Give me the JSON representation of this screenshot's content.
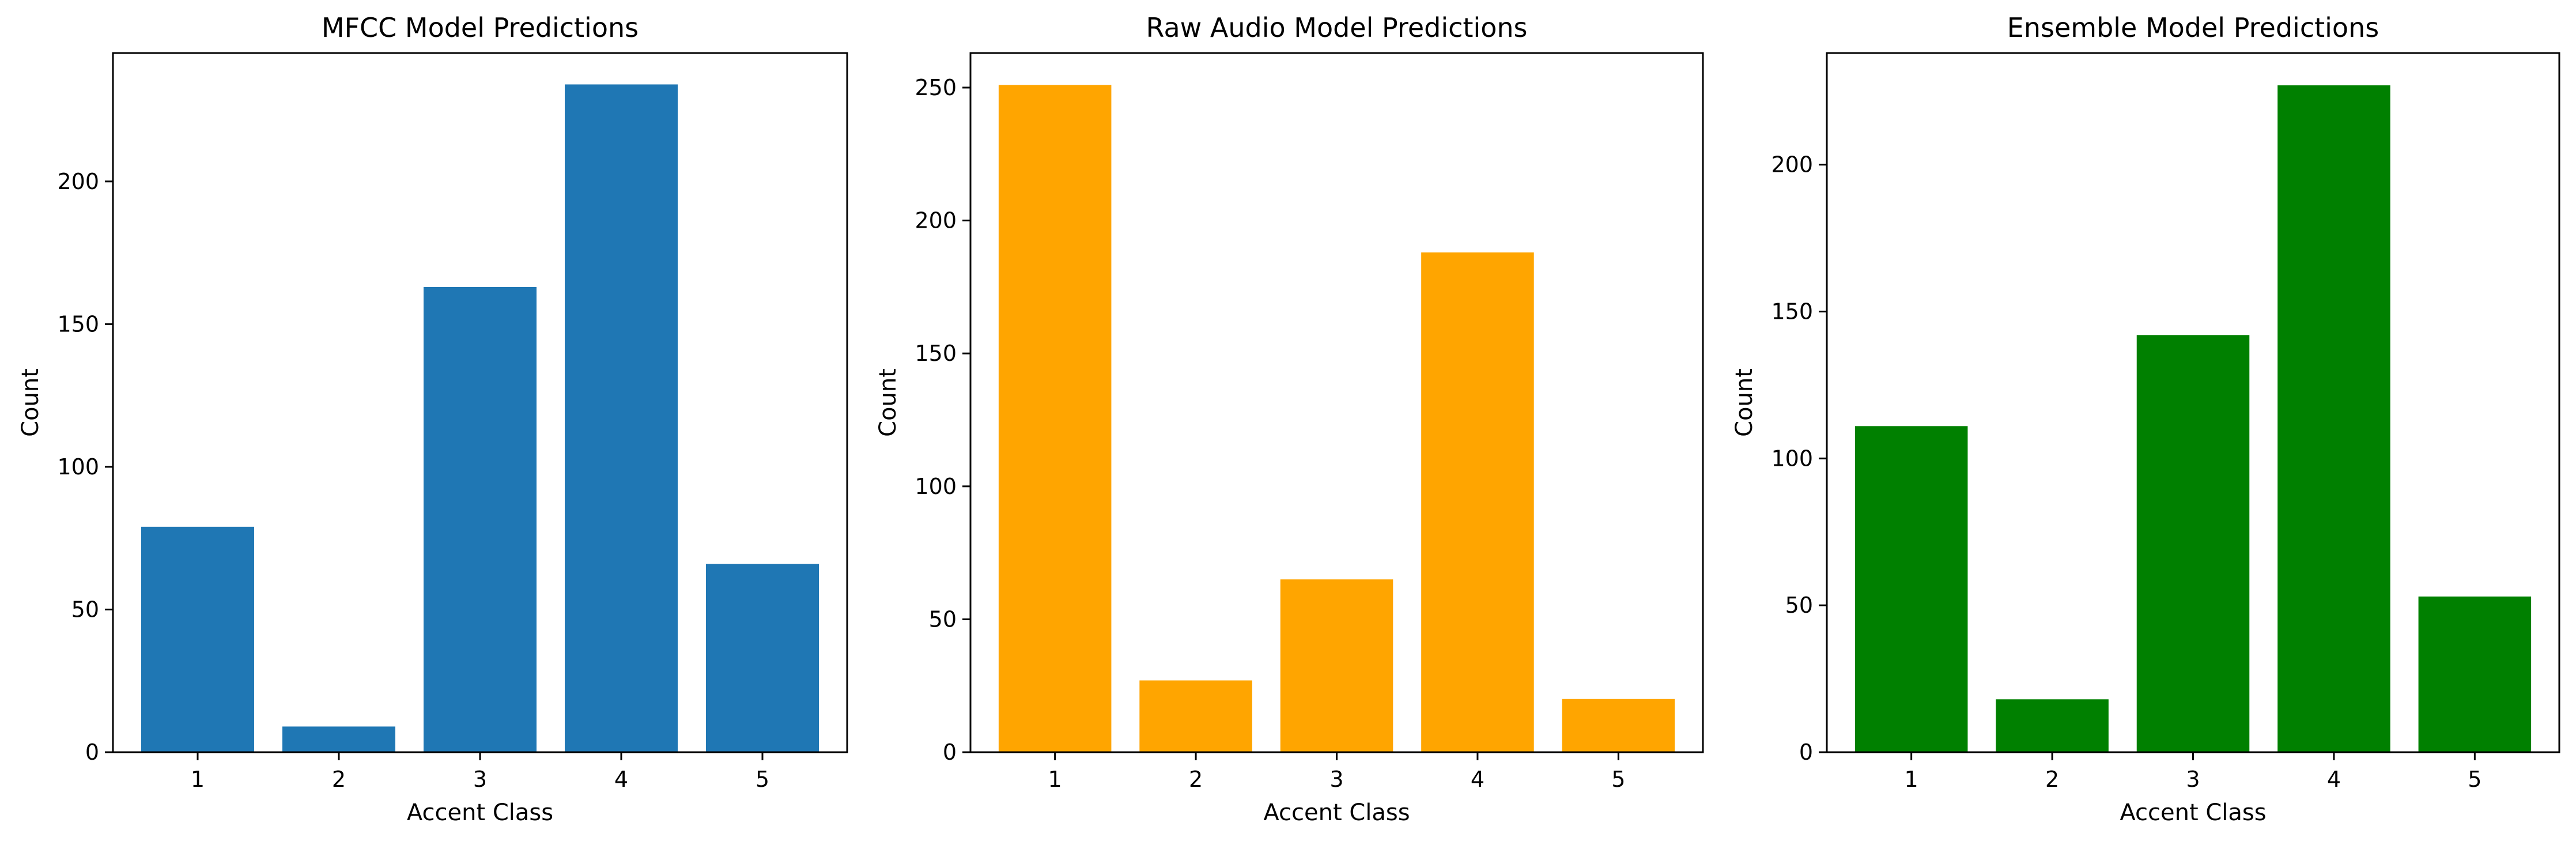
{
  "chart_data": [
    {
      "type": "bar",
      "title": "MFCC Model Predictions",
      "xlabel": "Accent Class",
      "ylabel": "Count",
      "categories": [
        "1",
        "2",
        "3",
        "4",
        "5"
      ],
      "values": [
        79,
        9,
        163,
        234,
        66
      ],
      "ylim": [
        0,
        245
      ],
      "yticks": [
        0,
        50,
        100,
        150,
        200
      ],
      "color": "#1f77b4",
      "grid": false,
      "legend": "none"
    },
    {
      "type": "bar",
      "title": "Raw Audio Model Predictions",
      "xlabel": "Accent Class",
      "ylabel": "Count",
      "categories": [
        "1",
        "2",
        "3",
        "4",
        "5"
      ],
      "values": [
        251,
        27,
        65,
        188,
        20
      ],
      "ylim": [
        0,
        263
      ],
      "yticks": [
        0,
        50,
        100,
        150,
        200,
        250
      ],
      "color": "#ffa500",
      "grid": false,
      "legend": "none"
    },
    {
      "type": "bar",
      "title": "Ensemble Model Predictions",
      "xlabel": "Accent Class",
      "ylabel": "Count",
      "categories": [
        "1",
        "2",
        "3",
        "4",
        "5"
      ],
      "values": [
        111,
        18,
        142,
        227,
        53
      ],
      "ylim": [
        0,
        238
      ],
      "yticks": [
        0,
        50,
        100,
        150,
        200
      ],
      "color": "#008000",
      "grid": false,
      "legend": "none"
    }
  ]
}
